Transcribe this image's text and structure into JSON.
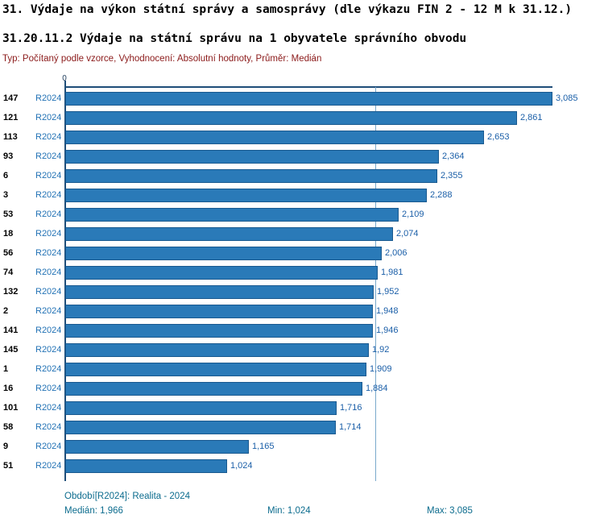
{
  "title_line1": "31. Výdaje na výkon státní správy a samosprávy (dle výkazu FIN 2 - 12 M k 31.12.)",
  "title_line2": "31.20.11.2 Výdaje na státní správu na 1 obyvatele správního obvodu",
  "subtitle": "Typ: Počítaný podle vzorce, Vyhodnocení: Absolutní hodnoty, Průměr: Medián",
  "chart_data": {
    "type": "bar",
    "orientation": "horizontal",
    "axis_zero_label": "0",
    "xlim": [
      0,
      3085
    ],
    "median_line_value": 1966,
    "bar_color": "#2a7ab8",
    "series_name": "R2024",
    "rows": [
      {
        "id": "147",
        "series": "R2024",
        "value": 3085,
        "label": "3,085"
      },
      {
        "id": "121",
        "series": "R2024",
        "value": 2861,
        "label": "2,861"
      },
      {
        "id": "113",
        "series": "R2024",
        "value": 2653,
        "label": "2,653"
      },
      {
        "id": "93",
        "series": "R2024",
        "value": 2364,
        "label": "2,364"
      },
      {
        "id": "6",
        "series": "R2024",
        "value": 2355,
        "label": "2,355"
      },
      {
        "id": "3",
        "series": "R2024",
        "value": 2288,
        "label": "2,288"
      },
      {
        "id": "53",
        "series": "R2024",
        "value": 2109,
        "label": "2,109"
      },
      {
        "id": "18",
        "series": "R2024",
        "value": 2074,
        "label": "2,074"
      },
      {
        "id": "56",
        "series": "R2024",
        "value": 2006,
        "label": "2,006"
      },
      {
        "id": "74",
        "series": "R2024",
        "value": 1981,
        "label": "1,981"
      },
      {
        "id": "132",
        "series": "R2024",
        "value": 1952,
        "label": "1,952"
      },
      {
        "id": "2",
        "series": "R2024",
        "value": 1948,
        "label": "1,948"
      },
      {
        "id": "141",
        "series": "R2024",
        "value": 1946,
        "label": "1,946"
      },
      {
        "id": "145",
        "series": "R2024",
        "value": 1920,
        "label": "1,92"
      },
      {
        "id": "1",
        "series": "R2024",
        "value": 1909,
        "label": "1,909"
      },
      {
        "id": "16",
        "series": "R2024",
        "value": 1884,
        "label": "1,884"
      },
      {
        "id": "101",
        "series": "R2024",
        "value": 1716,
        "label": "1,716"
      },
      {
        "id": "58",
        "series": "R2024",
        "value": 1714,
        "label": "1,714"
      },
      {
        "id": "9",
        "series": "R2024",
        "value": 1165,
        "label": "1,165"
      },
      {
        "id": "51",
        "series": "R2024",
        "value": 1024,
        "label": "1,024"
      }
    ]
  },
  "footer": {
    "period": "Období[R2024]: Realita - 2024",
    "median": "Medián: 1,966",
    "min": "Min: 1,024",
    "max": "Max: 3,085"
  }
}
